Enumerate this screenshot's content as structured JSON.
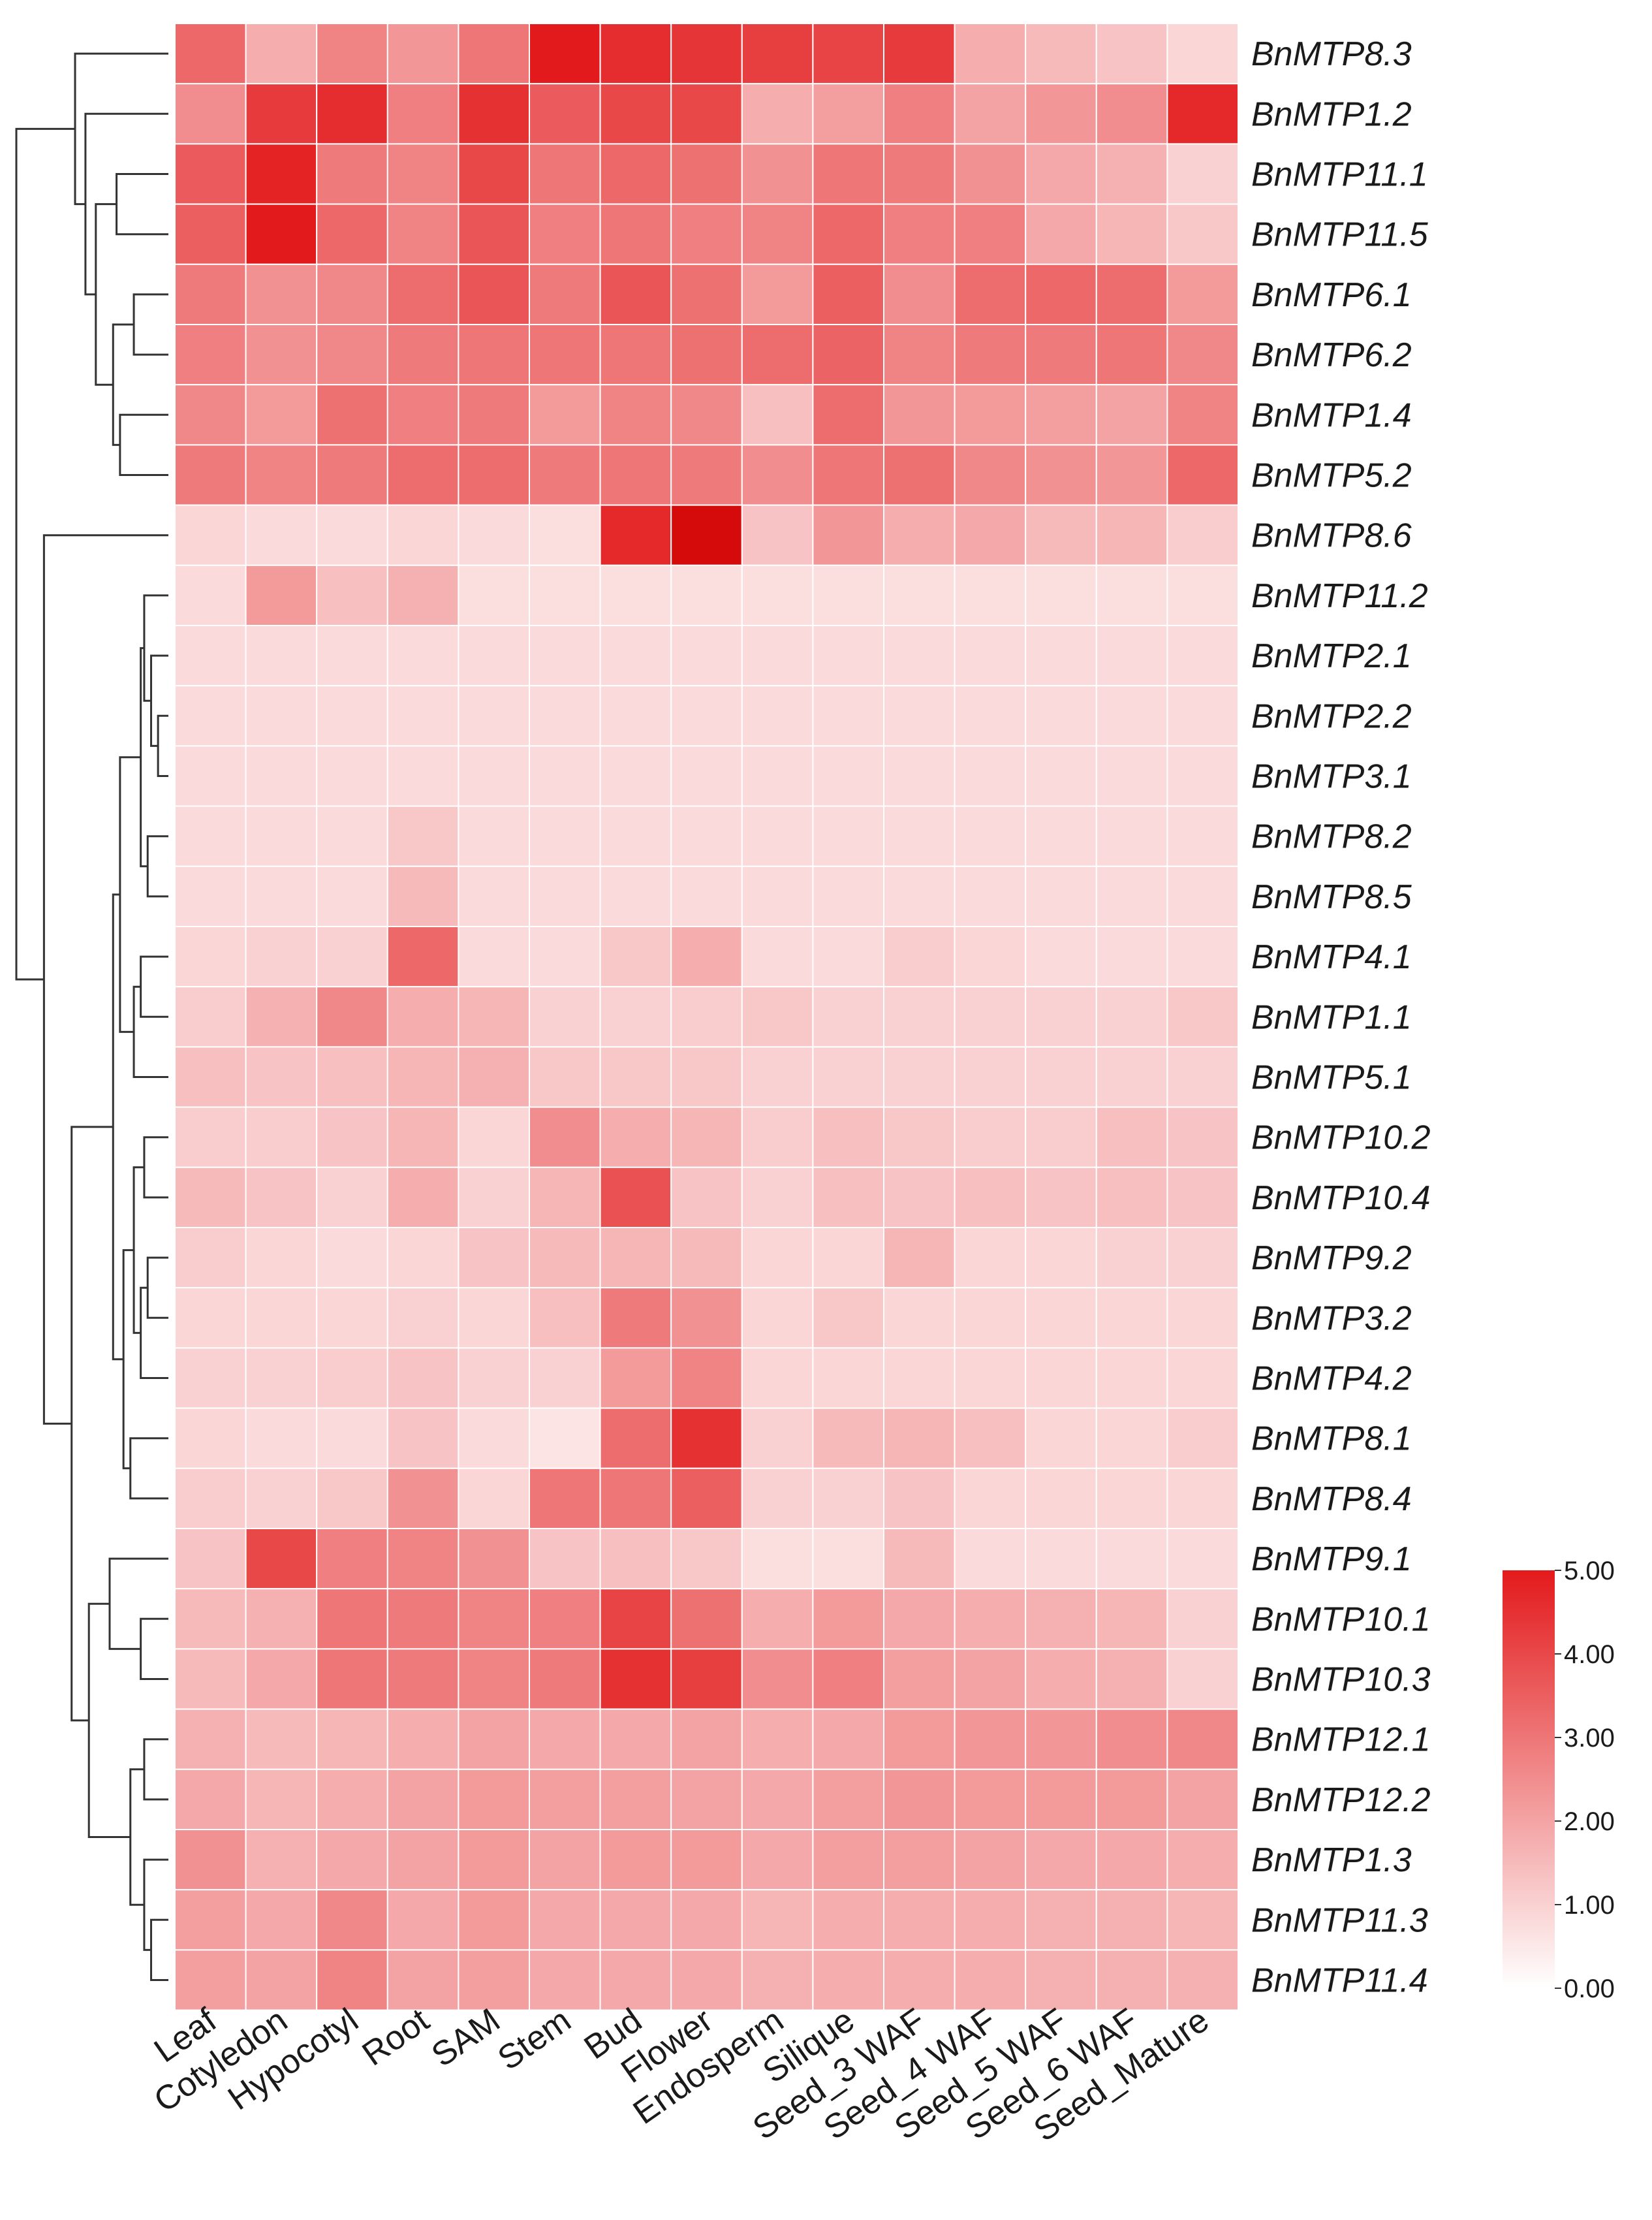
{
  "chart_data": {
    "type": "heatmap",
    "title": "",
    "rows": [
      "BnMTP8.3",
      "BnMTP1.2",
      "BnMTP11.1",
      "BnMTP11.5",
      "BnMTP6.1",
      "BnMTP6.2",
      "BnMTP1.4",
      "BnMTP5.2",
      "BnMTP8.6",
      "BnMTP11.2",
      "BnMTP2.1",
      "BnMTP2.2",
      "BnMTP3.1",
      "BnMTP8.2",
      "BnMTP8.5",
      "BnMTP4.1",
      "BnMTP1.1",
      "BnMTP5.1",
      "BnMTP10.2",
      "BnMTP10.4",
      "BnMTP9.2",
      "BnMTP3.2",
      "BnMTP4.2",
      "BnMTP8.1",
      "BnMTP8.4",
      "BnMTP9.1",
      "BnMTP10.1",
      "BnMTP10.3",
      "BnMTP12.1",
      "BnMTP12.2",
      "BnMTP1.3",
      "BnMTP11.3",
      "BnMTP11.4"
    ],
    "columns": [
      "Leaf",
      "Cotyledon",
      "Hypocotyl",
      "Root",
      "SAM",
      "Stem",
      "Bud",
      "Flower",
      "Endosperm",
      "Silique",
      "Seed_3 WAF",
      "Seed_4 WAF",
      "Seed_5 WAF",
      "Seed_6 WAF",
      "Seed_Mature"
    ],
    "values": [
      [
        3.3,
        1.8,
        2.7,
        2.3,
        3.0,
        5.0,
        4.6,
        4.4,
        4.2,
        4.1,
        4.3,
        1.8,
        1.5,
        1.3,
        0.9
      ],
      [
        2.5,
        4.3,
        4.6,
        2.8,
        4.5,
        3.6,
        4.0,
        4.0,
        1.8,
        2.1,
        2.8,
        2.0,
        2.3,
        2.5,
        4.7
      ],
      [
        3.6,
        4.8,
        2.9,
        2.7,
        4.0,
        3.0,
        3.3,
        3.1,
        2.4,
        3.0,
        2.9,
        2.4,
        1.9,
        1.7,
        1.0
      ],
      [
        3.5,
        5.0,
        3.3,
        2.7,
        3.7,
        2.8,
        3.0,
        2.8,
        2.7,
        3.3,
        2.8,
        2.8,
        1.9,
        1.6,
        1.2
      ],
      [
        2.9,
        2.4,
        2.6,
        3.2,
        3.7,
        2.9,
        3.7,
        3.1,
        2.2,
        3.5,
        2.5,
        3.2,
        3.3,
        3.2,
        2.2
      ],
      [
        2.8,
        2.4,
        2.6,
        2.9,
        3.0,
        3.0,
        3.0,
        3.1,
        3.2,
        3.4,
        2.7,
        2.9,
        2.9,
        3.0,
        2.6
      ],
      [
        2.6,
        2.2,
        3.1,
        2.8,
        2.9,
        2.2,
        2.7,
        2.6,
        1.4,
        3.2,
        2.3,
        2.2,
        2.1,
        2.0,
        2.7
      ],
      [
        2.9,
        2.7,
        2.9,
        3.2,
        3.2,
        2.9,
        3.0,
        2.9,
        2.5,
        3.0,
        3.1,
        2.6,
        2.4,
        2.3,
        3.3
      ],
      [
        0.9,
        0.8,
        0.8,
        0.9,
        0.8,
        0.7,
        4.7,
        5.6,
        1.3,
        2.3,
        1.8,
        1.9,
        1.5,
        1.6,
        1.1
      ],
      [
        0.8,
        2.2,
        1.4,
        1.7,
        0.7,
        0.7,
        0.7,
        0.7,
        0.7,
        0.7,
        0.7,
        0.7,
        0.7,
        0.7,
        0.7
      ],
      [
        0.8,
        0.8,
        0.8,
        0.8,
        0.8,
        0.8,
        0.8,
        0.8,
        0.8,
        0.8,
        0.8,
        0.8,
        0.8,
        0.8,
        0.8
      ],
      [
        0.8,
        0.8,
        0.8,
        0.8,
        0.8,
        0.8,
        0.8,
        0.8,
        0.8,
        0.8,
        0.8,
        0.8,
        0.8,
        0.8,
        0.8
      ],
      [
        0.8,
        0.8,
        0.8,
        0.8,
        0.8,
        0.8,
        0.8,
        0.8,
        0.8,
        0.8,
        0.8,
        0.8,
        0.8,
        0.8,
        0.8
      ],
      [
        0.8,
        0.8,
        0.8,
        1.2,
        0.8,
        0.8,
        0.8,
        0.8,
        0.8,
        0.8,
        0.8,
        0.8,
        0.8,
        0.8,
        0.8
      ],
      [
        0.8,
        0.8,
        0.8,
        1.5,
        0.8,
        0.8,
        0.8,
        0.8,
        0.8,
        0.8,
        0.8,
        0.8,
        0.8,
        0.8,
        0.8
      ],
      [
        0.9,
        1.0,
        1.0,
        3.3,
        0.8,
        0.8,
        1.2,
        1.8,
        0.8,
        0.8,
        1.1,
        0.9,
        0.8,
        0.8,
        0.8
      ],
      [
        1.1,
        1.7,
        2.6,
        1.8,
        1.6,
        1.0,
        1.0,
        1.1,
        1.2,
        1.0,
        1.0,
        1.0,
        1.0,
        1.0,
        1.2
      ],
      [
        1.4,
        1.3,
        1.4,
        1.6,
        1.7,
        1.2,
        1.2,
        1.2,
        1.0,
        1.0,
        1.0,
        1.0,
        1.0,
        1.0,
        1.0
      ],
      [
        1.1,
        1.1,
        1.3,
        1.6,
        0.9,
        2.5,
        1.8,
        1.6,
        1.1,
        1.4,
        1.2,
        1.1,
        1.1,
        1.4,
        1.3
      ],
      [
        1.5,
        1.3,
        1.0,
        1.8,
        1.0,
        1.6,
        3.8,
        1.3,
        1.0,
        1.4,
        1.3,
        1.4,
        1.3,
        1.4,
        1.3
      ],
      [
        1.1,
        0.9,
        0.8,
        0.9,
        1.3,
        1.5,
        1.6,
        1.5,
        0.9,
        0.9,
        1.6,
        0.9,
        0.9,
        1.0,
        1.0
      ],
      [
        0.9,
        0.9,
        0.9,
        1.0,
        0.9,
        1.4,
        2.9,
        2.4,
        0.9,
        1.2,
        0.9,
        0.9,
        0.9,
        0.9,
        0.9
      ],
      [
        1.0,
        1.0,
        1.1,
        1.3,
        1.0,
        1.0,
        2.2,
        2.7,
        0.9,
        0.9,
        0.9,
        0.9,
        0.9,
        0.9,
        0.9
      ],
      [
        0.9,
        0.8,
        0.8,
        1.3,
        0.8,
        0.6,
        3.2,
        4.5,
        1.0,
        1.5,
        1.6,
        1.4,
        0.9,
        0.9,
        1.1
      ],
      [
        1.1,
        1.0,
        1.2,
        2.4,
        0.9,
        3.0,
        3.0,
        3.5,
        1.0,
        1.0,
        1.3,
        0.9,
        0.9,
        0.9,
        0.9
      ],
      [
        1.3,
        4.0,
        2.8,
        2.7,
        2.4,
        1.3,
        1.4,
        1.2,
        0.7,
        0.7,
        1.5,
        0.8,
        0.8,
        0.8,
        0.8
      ],
      [
        1.5,
        1.7,
        3.0,
        2.9,
        2.7,
        2.8,
        4.1,
        3.1,
        1.8,
        2.2,
        1.9,
        1.8,
        1.7,
        1.6,
        1.0
      ],
      [
        1.5,
        1.9,
        3.0,
        2.9,
        2.7,
        2.9,
        4.5,
        4.2,
        2.5,
        2.8,
        2.1,
        2.0,
        1.8,
        1.7,
        1.0
      ],
      [
        1.7,
        1.5,
        1.6,
        1.8,
        2.0,
        1.9,
        1.9,
        2.0,
        1.8,
        1.9,
        2.2,
        2.3,
        2.3,
        2.5,
        2.6
      ],
      [
        1.9,
        1.6,
        1.8,
        2.0,
        2.2,
        2.1,
        2.1,
        2.0,
        1.9,
        2.1,
        2.3,
        2.2,
        2.2,
        2.2,
        2.0
      ],
      [
        2.4,
        1.7,
        1.9,
        2.0,
        2.2,
        2.0,
        2.2,
        2.2,
        1.9,
        2.1,
        2.1,
        2.0,
        1.9,
        1.9,
        1.8
      ],
      [
        2.1,
        1.9,
        2.6,
        1.9,
        2.2,
        1.9,
        1.9,
        1.9,
        1.6,
        1.8,
        1.8,
        1.8,
        1.7,
        1.7,
        1.6
      ],
      [
        2.1,
        2.0,
        2.7,
        2.0,
        2.1,
        1.9,
        1.9,
        1.9,
        1.7,
        1.8,
        1.8,
        1.8,
        1.7,
        1.7,
        1.7
      ]
    ],
    "color_scale": {
      "min": 0,
      "max": 5,
      "low_color": "#ffffff",
      "high_color": "#e31a1c",
      "over_color": "#cc0000",
      "ticks": [
        "0.00",
        "1.00",
        "2.00",
        "3.00",
        "4.00",
        "5.00"
      ],
      "legend_position": "right"
    },
    "row_dendrogram": {
      "side": "left",
      "row_order": [
        0,
        1,
        2,
        3,
        4,
        5,
        6,
        7,
        8,
        9,
        10,
        11,
        12,
        13,
        14,
        15,
        16,
        17,
        18,
        19,
        20,
        21,
        22,
        23,
        24,
        25,
        26,
        27,
        28,
        29,
        30,
        31,
        32
      ],
      "merges": [
        [
          -12,
          -13,
          0.15
        ],
        [
          -11,
          1,
          0.25
        ],
        [
          -14,
          -15,
          0.3
        ],
        [
          -10,
          2,
          0.35
        ],
        [
          4,
          3,
          0.4
        ],
        [
          -16,
          -17,
          0.4
        ],
        [
          6,
          -18,
          0.5
        ],
        [
          -19,
          -20,
          0.35
        ],
        [
          -21,
          -22,
          0.3
        ],
        [
          9,
          -23,
          0.4
        ],
        [
          8,
          10,
          0.5
        ],
        [
          -24,
          -25,
          0.55
        ],
        [
          11,
          12,
          0.65
        ],
        [
          5,
          7,
          0.7
        ],
        [
          14,
          13,
          0.8
        ],
        [
          -27,
          -28,
          0.4
        ],
        [
          -26,
          16,
          0.85
        ],
        [
          -29,
          -30,
          0.35
        ],
        [
          -32,
          -33,
          0.25
        ],
        [
          -31,
          19,
          0.35
        ],
        [
          18,
          20,
          0.55
        ],
        [
          17,
          21,
          1.15
        ],
        [
          15,
          22,
          1.4
        ],
        [
          -9,
          23,
          1.8
        ],
        [
          -3,
          -4,
          0.75
        ],
        [
          -5,
          -6,
          0.5
        ],
        [
          -7,
          -8,
          0.7
        ],
        [
          26,
          27,
          0.8
        ],
        [
          25,
          28,
          1.05
        ],
        [
          -2,
          29,
          1.2
        ],
        [
          -1,
          30,
          1.35
        ],
        [
          31,
          24,
          2.2
        ]
      ]
    },
    "xlabel": "",
    "ylabel": ""
  }
}
